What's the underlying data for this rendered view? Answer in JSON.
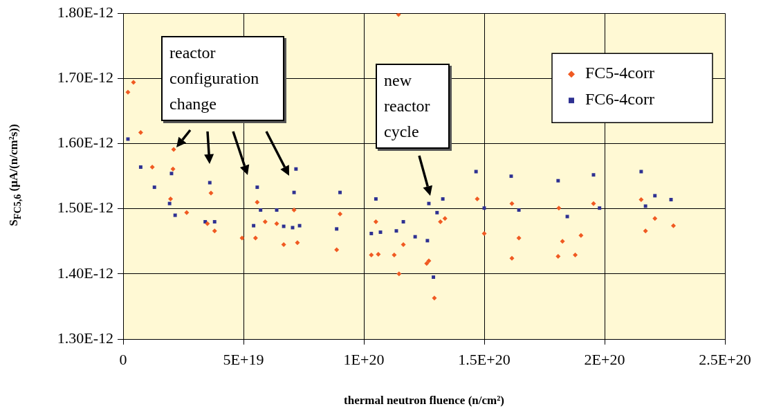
{
  "chart_data": {
    "type": "scatter",
    "xlabel": "thermal neutron fluence (n/cm²)",
    "ylabel": "S$_{FC5,6}$ (µA/(n/cm²s))",
    "xlim": [
      0,
      2.5e+20
    ],
    "xticks": [
      0,
      {
        "value": 5e+19,
        "label": "5E+19"
      },
      {
        "value": 1e+20,
        "label": "1E+20"
      },
      {
        "value": 1.5e+20,
        "label": "1.5E+20"
      },
      {
        "value": 2e+20,
        "label": "2E+20"
      },
      {
        "value": 2.5e+20,
        "label": "2.5E+20"
      }
    ],
    "ylim": [
      1.3e-12,
      1.8e-12
    ],
    "yticks": [
      {
        "value": 1.3e-12,
        "label": "1.30E-12"
      },
      {
        "value": 1.4e-12,
        "label": "1.40E-12"
      },
      {
        "value": 1.5e-12,
        "label": "1.50E-12"
      },
      {
        "value": 1.6e-12,
        "label": "1.60E-12"
      },
      {
        "value": 1.7e-12,
        "label": "1.70E-12"
      },
      {
        "value": 1.8e-12,
        "label": "1.80E-12"
      }
    ],
    "grid": true,
    "legend": "top right",
    "annotations": [
      "reactor configuration change",
      "new reactor cycle"
    ],
    "series": [
      {
        "name": "FC5-4corr",
        "color": "#f05a22",
        "marker": "diamond",
        "x": [
          2e+18,
          4.3e+18,
          7.3e+18,
          1.21e+19,
          1.97e+19,
          2.07e+19,
          2.1e+19,
          2.64e+19,
          3.5e+19,
          3.65e+19,
          3.8e+19,
          4.94e+19,
          5.5e+19,
          5.57e+19,
          5.9e+19,
          6.38e+19,
          6.67e+19,
          7.1e+19,
          7.24e+19,
          8.87e+19,
          9.01e+19,
          1.031e+20,
          1.05e+20,
          1.06e+20,
          1.126e+20,
          1.144e+20,
          1.146e+20,
          1.164e+20,
          1.261e+20,
          1.27e+20,
          1.293e+20,
          1.318e+20,
          1.337e+20,
          1.471e+20,
          1.5e+20,
          1.615e+20,
          1.615e+20,
          1.644e+20,
          1.807e+20,
          1.81e+20,
          1.825e+20,
          1.878e+20,
          1.902e+20,
          1.954e+20,
          2.152e+20,
          2.17e+20,
          2.209e+20,
          2.286e+20
        ],
        "values": [
          1.679e-12,
          1.694e-12,
          1.617e-12,
          1.564e-12,
          1.515e-12,
          1.561e-12,
          1.591e-12,
          1.494e-12,
          1.477e-12,
          1.524e-12,
          1.466e-12,
          1.455e-12,
          1.455e-12,
          1.51e-12,
          1.48e-12,
          1.477e-12,
          1.445e-12,
          1.498e-12,
          1.448e-12,
          1.437e-12,
          1.492e-12,
          1.429e-12,
          1.48e-12,
          1.43e-12,
          1.429e-12,
          1.798e-12,
          1.4e-12,
          1.445e-12,
          1.416e-12,
          1.42e-12,
          1.363e-12,
          1.48e-12,
          1.485e-12,
          1.515e-12,
          1.462e-12,
          1.508e-12,
          1.424e-12,
          1.455e-12,
          1.427e-12,
          1.501e-12,
          1.45e-12,
          1.429e-12,
          1.459e-12,
          1.508e-12,
          1.514e-12,
          1.466e-12,
          1.485e-12,
          1.474e-12
        ]
      },
      {
        "name": "FC6-4corr",
        "color": "#2e3192",
        "marker": "square",
        "x": [
          2e+18,
          7.3e+18,
          1.3e+19,
          1.93e+19,
          2.01e+19,
          2.16e+19,
          3.41e+19,
          3.6e+19,
          3.8e+19,
          5.42e+19,
          5.57e+19,
          5.71e+19,
          6.38e+19,
          6.67e+19,
          7.04e+19,
          7.1e+19,
          7.18e+19,
          7.33e+19,
          8.87e+19,
          9.01e+19,
          1.031e+20,
          1.05e+20,
          1.069e+20,
          1.135e+20,
          1.164e+20,
          1.213e+20,
          1.264e+20,
          1.27e+20,
          1.289e+20,
          1.304e+20,
          1.328e+20,
          1.466e+20,
          1.5e+20,
          1.612e+20,
          1.644e+20,
          1.807e+20,
          1.845e+20,
          1.954e+20,
          1.979e+20,
          2.152e+20,
          2.17e+20,
          2.209e+20,
          2.276e+20
        ],
        "values": [
          1.607e-12,
          1.564e-12,
          1.533e-12,
          1.508e-12,
          1.554e-12,
          1.49e-12,
          1.48e-12,
          1.54e-12,
          1.48e-12,
          1.474e-12,
          1.533e-12,
          1.498e-12,
          1.498e-12,
          1.473e-12,
          1.471e-12,
          1.525e-12,
          1.561e-12,
          1.474e-12,
          1.469e-12,
          1.525e-12,
          1.462e-12,
          1.515e-12,
          1.464e-12,
          1.466e-12,
          1.48e-12,
          1.457e-12,
          1.451e-12,
          1.508e-12,
          1.395e-12,
          1.494e-12,
          1.515e-12,
          1.557e-12,
          1.501e-12,
          1.55e-12,
          1.498e-12,
          1.543e-12,
          1.488e-12,
          1.552e-12,
          1.501e-12,
          1.557e-12,
          1.504e-12,
          1.52e-12,
          1.514e-12
        ]
      }
    ]
  }
}
